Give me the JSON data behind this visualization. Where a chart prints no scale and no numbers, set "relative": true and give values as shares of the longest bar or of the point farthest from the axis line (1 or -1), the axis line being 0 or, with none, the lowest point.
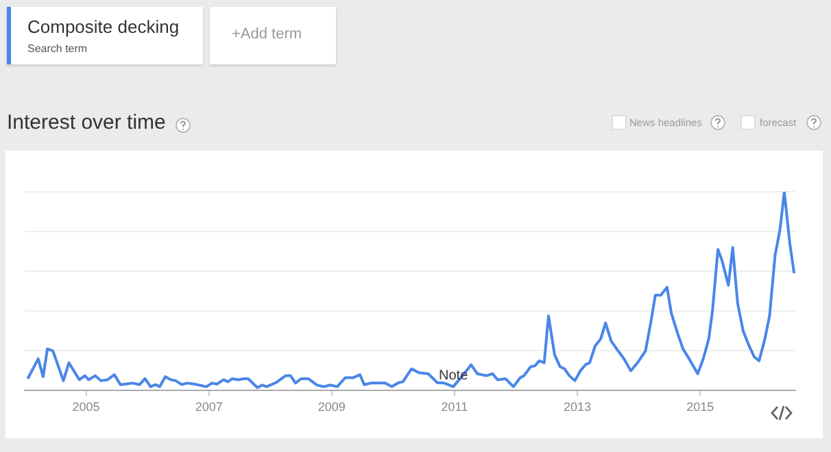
{
  "chart_data": {
    "type": "line",
    "title": "Interest over time",
    "relative": true,
    "legend": "top left",
    "grid": "y",
    "marker": "none",
    "line_style": "solid",
    "xlim": [
      2004,
      2016.55
    ],
    "xticks": [
      2005,
      2007,
      2009,
      2011,
      2013,
      2015
    ],
    "annotations": [
      "Search term",
      "+Add term",
      "News headlines",
      "forecast",
      {
        "text": "Note",
        "x": 2010.98,
        "y": 0.02
      }
    ],
    "x": [
      2004.05,
      2004.22,
      2004.3,
      2004.37,
      2004.46,
      2004.63,
      2004.72,
      2004.89,
      2004.98,
      2005.04,
      2005.15,
      2005.24,
      2005.35,
      2005.46,
      2005.56,
      2005.76,
      2005.87,
      2005.96,
      2006.05,
      2006.13,
      2006.2,
      2006.29,
      2006.38,
      2006.46,
      2006.56,
      2006.64,
      2006.76,
      2006.96,
      2007.05,
      2007.13,
      2007.24,
      2007.31,
      2007.38,
      2007.48,
      2007.57,
      2007.64,
      2007.79,
      2007.87,
      2007.94,
      2008.09,
      2008.25,
      2008.33,
      2008.41,
      2008.5,
      2008.62,
      2008.76,
      2008.87,
      2008.98,
      2009.09,
      2009.22,
      2009.35,
      2009.46,
      2009.53,
      2009.64,
      2009.87,
      2009.98,
      2010.09,
      2010.16,
      2010.3,
      2010.42,
      2010.57,
      2010.72,
      2010.83,
      2010.98,
      2011.13,
      2011.27,
      2011.37,
      2011.52,
      2011.62,
      2011.7,
      2011.83,
      2011.96,
      2012.07,
      2012.13,
      2012.24,
      2012.31,
      2012.38,
      2012.46,
      2012.53,
      2012.63,
      2012.72,
      2012.79,
      2012.87,
      2012.96,
      2013.05,
      2013.13,
      2013.2,
      2013.29,
      2013.38,
      2013.46,
      2013.55,
      2013.64,
      2013.76,
      2013.87,
      2013.98,
      2014.11,
      2014.2,
      2014.27,
      2014.36,
      2014.46,
      2014.53,
      2014.63,
      2014.72,
      2014.83,
      2014.96,
      2015.05,
      2015.14,
      2015.2,
      2015.29,
      2015.36,
      2015.46,
      2015.53,
      2015.61,
      2015.7,
      2015.79,
      2015.88,
      2015.96,
      2016.05,
      2016.13,
      2016.22,
      2016.3,
      2016.37,
      2016.46,
      2016.53
    ],
    "series": [
      {
        "name": "Composite decking",
        "color": "#4a86e8",
        "values": [
          0.06,
          0.16,
          0.07,
          0.21,
          0.2,
          0.05,
          0.14,
          0.055,
          0.075,
          0.055,
          0.075,
          0.05,
          0.055,
          0.08,
          0.03,
          0.038,
          0.03,
          0.06,
          0.02,
          0.03,
          0.02,
          0.07,
          0.055,
          0.05,
          0.03,
          0.038,
          0.033,
          0.02,
          0.038,
          0.033,
          0.055,
          0.045,
          0.06,
          0.055,
          0.06,
          0.06,
          0.015,
          0.028,
          0.02,
          0.04,
          0.075,
          0.075,
          0.038,
          0.06,
          0.06,
          0.028,
          0.02,
          0.028,
          0.02,
          0.065,
          0.065,
          0.08,
          0.03,
          0.038,
          0.038,
          0.02,
          0.04,
          0.045,
          0.11,
          0.09,
          0.085,
          0.04,
          0.038,
          0.02,
          0.075,
          0.13,
          0.085,
          0.075,
          0.085,
          0.055,
          0.06,
          0.02,
          0.065,
          0.075,
          0.12,
          0.125,
          0.15,
          0.14,
          0.376,
          0.18,
          0.12,
          0.11,
          0.075,
          0.05,
          0.1,
          0.13,
          0.14,
          0.225,
          0.26,
          0.34,
          0.25,
          0.21,
          0.16,
          0.1,
          0.14,
          0.2,
          0.35,
          0.48,
          0.48,
          0.52,
          0.39,
          0.29,
          0.21,
          0.155,
          0.085,
          0.16,
          0.26,
          0.4,
          0.71,
          0.65,
          0.53,
          0.72,
          0.44,
          0.3,
          0.23,
          0.17,
          0.15,
          0.255,
          0.376,
          0.68,
          0.81,
          1,
          0.74,
          0.59
        ]
      }
    ]
  }
}
